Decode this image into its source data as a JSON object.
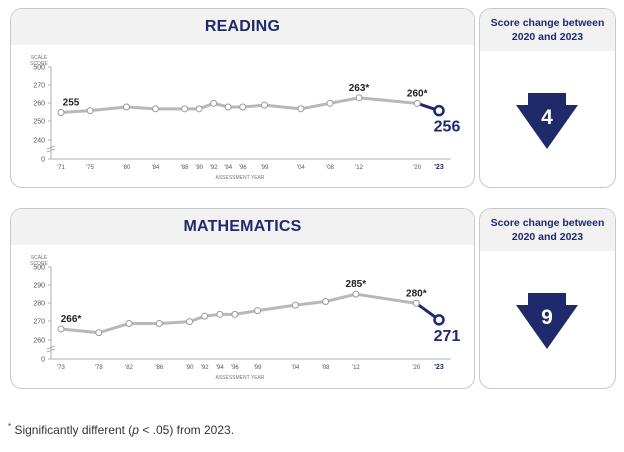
{
  "reading": {
    "title": "READING",
    "side_title": "Score change between 2020 and 2023",
    "change": "4",
    "direction": "down"
  },
  "math": {
    "title": "MATHEMATICS",
    "side_title": "Score change between 2020 and 2023",
    "change": "9",
    "direction": "down"
  },
  "footnote": {
    "star": "*",
    "text_before": " Significantly different (",
    "p": "p",
    "text_after": " < .05) from 2023."
  },
  "colors": {
    "navy": "#1f2a6b",
    "line": "#b8b8b8",
    "axis": "#999999"
  },
  "chart_data": [
    {
      "type": "line",
      "title": "READING",
      "ylabel": "SCALE SCORE",
      "xlabel": "ASSESSMENT YEAR",
      "y_ticks": [
        "0",
        "240",
        "250",
        "260",
        "270",
        "500"
      ],
      "x_tick_labels": [
        "'71",
        "'75",
        "'80",
        "'84",
        "'88",
        "'90",
        "'92",
        "'94",
        "'96",
        "'99",
        "'04",
        "'08",
        "'12",
        "'20",
        "'23"
      ],
      "x": [
        1971,
        1975,
        1980,
        1984,
        1988,
        1990,
        1992,
        1994,
        1996,
        1999,
        2004,
        2008,
        2012,
        2020,
        2023
      ],
      "values": [
        255,
        256,
        258,
        257,
        257,
        257,
        260,
        258,
        258,
        259,
        257,
        260,
        263,
        260,
        256
      ],
      "point_labels": {
        "1971": "255",
        "2012": "263*",
        "2020": "260*",
        "2023": "256"
      },
      "highlight_last": true
    },
    {
      "type": "line",
      "title": "MATHEMATICS",
      "ylabel": "SCALE SCORE",
      "xlabel": "ASSESSMENT YEAR",
      "y_ticks": [
        "0",
        "260",
        "270",
        "280",
        "290",
        "500"
      ],
      "x_tick_labels": [
        "'73",
        "'78",
        "'82",
        "'86",
        "'90",
        "'92",
        "'94",
        "'96",
        "'99",
        "'04",
        "'08",
        "'12",
        "'20",
        "'23"
      ],
      "x": [
        1973,
        1978,
        1982,
        1986,
        1990,
        1992,
        1994,
        1996,
        1999,
        2004,
        2008,
        2012,
        2020,
        2023
      ],
      "values": [
        266,
        264,
        269,
        269,
        270,
        273,
        274,
        274,
        276,
        279,
        281,
        285,
        280,
        271
      ],
      "point_labels": {
        "1973": "266*",
        "2012": "285*",
        "2020": "280*",
        "2023": "271"
      },
      "highlight_last": true
    }
  ]
}
